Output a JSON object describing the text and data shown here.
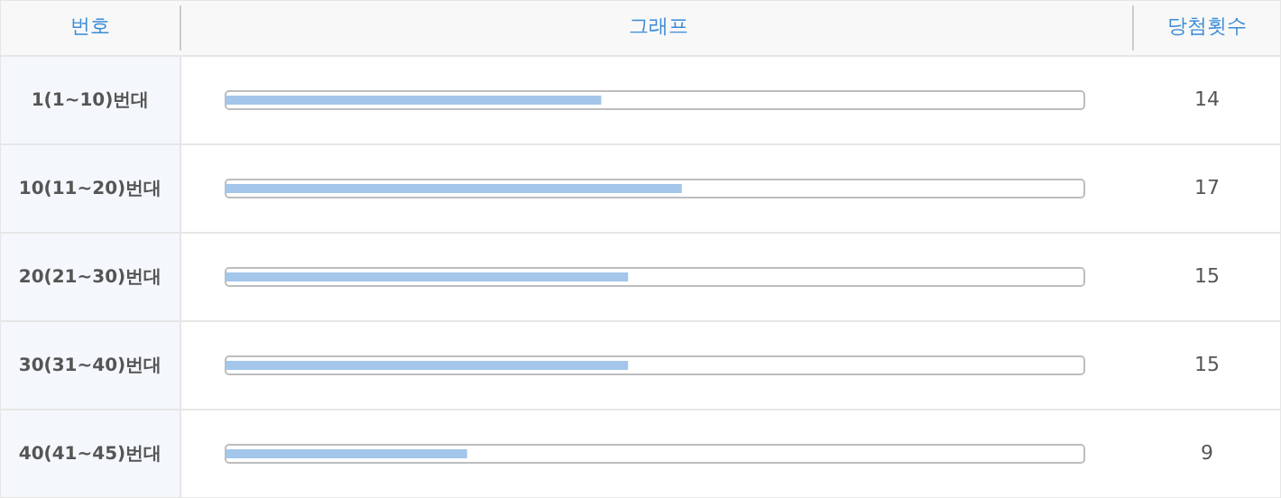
{
  "chart_data": {
    "type": "bar",
    "orientation": "horizontal",
    "ylabel": "번호",
    "xlabel": "그래프",
    "annotations": [
      "당첨횟수"
    ],
    "categories": [
      "1(1~10)번대",
      "10(11~20)번대",
      "20(21~30)번대",
      "30(31~40)번대",
      "40(41~45)번대"
    ],
    "values": [
      14,
      17,
      15,
      15,
      9
    ],
    "color": "#a3c6ea",
    "xlim": [
      0,
      32
    ],
    "data_labels": true
  }
}
